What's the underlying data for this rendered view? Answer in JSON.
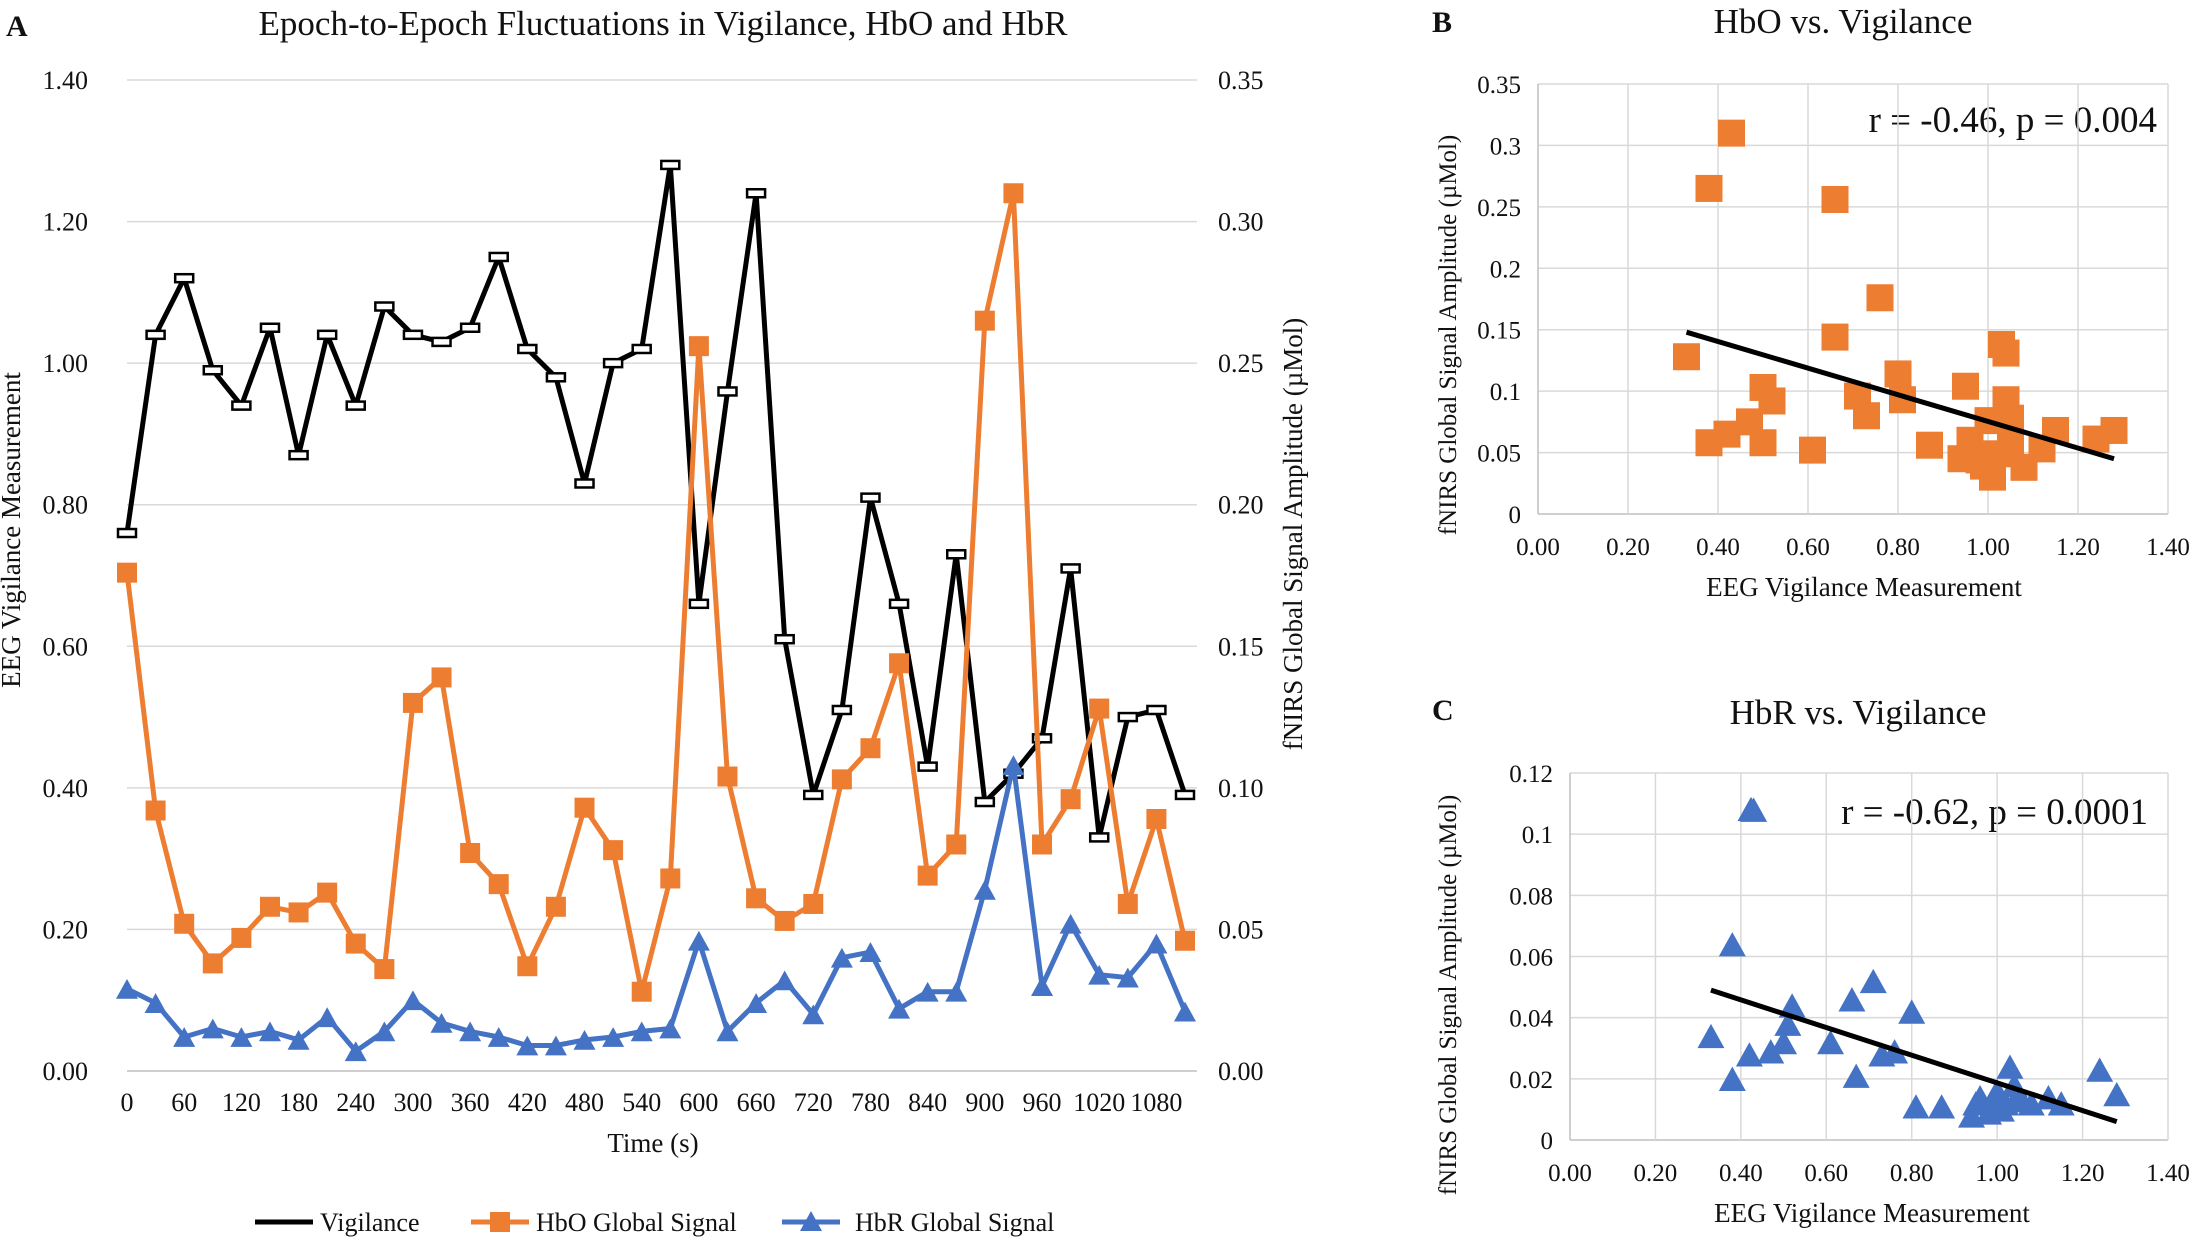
{
  "panel_labels": {
    "a": "A",
    "b": "B",
    "c": "C"
  },
  "chart_data": [
    {
      "id": "A",
      "type": "line",
      "title": "Epoch-to-Epoch Fluctuations in Vigilance, HbO and HbR",
      "xlabel": "Time (s)",
      "ylabel": "EEG Vigilance Measurement",
      "y2label": "fNIRS Global Signal Amplitude (µMol)",
      "ylim": [
        0,
        1.4
      ],
      "y2lim": [
        0,
        0.35
      ],
      "yticks": [
        "0.00",
        "0.20",
        "0.40",
        "0.60",
        "0.80",
        "1.00",
        "1.20",
        "1.40"
      ],
      "y2ticks": [
        "0.00",
        "0.05",
        "0.10",
        "0.15",
        "0.20",
        "0.25",
        "0.30",
        "0.35"
      ],
      "xticks": [
        "0",
        "60",
        "120",
        "180",
        "240",
        "300",
        "360",
        "420",
        "480",
        "540",
        "600",
        "660",
        "720",
        "780",
        "840",
        "900",
        "960",
        "1020",
        "1080"
      ],
      "x": [
        0,
        30,
        60,
        90,
        120,
        150,
        180,
        210,
        240,
        270,
        300,
        330,
        360,
        390,
        420,
        450,
        480,
        510,
        540,
        570,
        600,
        630,
        660,
        690,
        720,
        750,
        780,
        810,
        840,
        870,
        900,
        930,
        960,
        990,
        1020,
        1050,
        1080,
        1110
      ],
      "legend": [
        "Vigilance",
        "HbO Global Signal",
        "HbR Global Signal"
      ],
      "series": [
        {
          "name": "Vigilance",
          "axis": "left",
          "color": "#000000",
          "values": [
            0.76,
            1.04,
            1.12,
            0.99,
            0.94,
            1.05,
            0.87,
            1.04,
            0.94,
            1.08,
            1.04,
            1.03,
            1.05,
            1.15,
            1.02,
            0.98,
            0.83,
            1.0,
            1.02,
            1.28,
            0.66,
            0.96,
            1.24,
            0.61,
            0.39,
            0.51,
            0.81,
            0.66,
            0.43,
            0.73,
            0.38,
            0.42,
            0.47,
            0.71,
            0.33,
            0.5,
            0.51,
            0.39
          ]
        },
        {
          "name": "HbO Global Signal",
          "axis": "right",
          "color": "#ed7d31",
          "values": [
            0.176,
            0.092,
            0.052,
            0.038,
            0.047,
            0.058,
            0.056,
            0.063,
            0.045,
            0.036,
            0.13,
            0.139,
            0.077,
            0.066,
            0.037,
            0.058,
            0.093,
            0.078,
            0.028,
            0.068,
            0.256,
            0.104,
            0.061,
            0.053,
            0.059,
            0.103,
            0.114,
            0.144,
            0.069,
            0.08,
            0.265,
            0.31,
            0.08,
            0.096,
            0.128,
            0.059,
            0.089,
            0.046
          ]
        },
        {
          "name": "HbR Global Signal",
          "axis": "right",
          "color": "#4472c4",
          "values": [
            0.029,
            0.024,
            0.012,
            0.015,
            0.012,
            0.014,
            0.011,
            0.019,
            0.007,
            0.014,
            0.025,
            0.017,
            0.014,
            0.012,
            0.009,
            0.009,
            0.011,
            0.012,
            0.014,
            0.015,
            0.046,
            0.014,
            0.024,
            0.032,
            0.02,
            0.04,
            0.042,
            0.022,
            0.028,
            0.028,
            0.064,
            0.108,
            0.03,
            0.052,
            0.034,
            0.033,
            0.045,
            0.021
          ]
        }
      ]
    },
    {
      "id": "B",
      "type": "scatter",
      "title": "HbO vs. Vigilance",
      "xlabel": "EEG Vigilance Measurement",
      "ylabel": "fNIRS Global Signal Amplitude (µMol)",
      "xlim": [
        0,
        1.4
      ],
      "ylim": [
        0,
        0.35
      ],
      "xticks": [
        "0.00",
        "0.20",
        "0.40",
        "0.60",
        "0.80",
        "1.00",
        "1.20",
        "1.40"
      ],
      "yticks": [
        "0",
        "0.05",
        "0.1",
        "0.15",
        "0.2",
        "0.25",
        "0.3",
        "0.35"
      ],
      "annotation": "r = -0.46, p = 0.004",
      "color": "#ed7d31",
      "points": [
        [
          0.33,
          0.128
        ],
        [
          0.38,
          0.265
        ],
        [
          0.38,
          0.058
        ],
        [
          0.42,
          0.065
        ],
        [
          0.43,
          0.31
        ],
        [
          0.47,
          0.075
        ],
        [
          0.5,
          0.103
        ],
        [
          0.5,
          0.058
        ],
        [
          0.52,
          0.092
        ],
        [
          0.61,
          0.052
        ],
        [
          0.66,
          0.256
        ],
        [
          0.66,
          0.144
        ],
        [
          0.71,
          0.096
        ],
        [
          0.73,
          0.08
        ],
        [
          0.76,
          0.176
        ],
        [
          0.8,
          0.114
        ],
        [
          0.81,
          0.093
        ],
        [
          0.87,
          0.056
        ],
        [
          0.94,
          0.045
        ],
        [
          0.95,
          0.104
        ],
        [
          0.96,
          0.06
        ],
        [
          0.98,
          0.044
        ],
        [
          0.99,
          0.039
        ],
        [
          1.0,
          0.076
        ],
        [
          1.01,
          0.03
        ],
        [
          1.02,
          0.049
        ],
        [
          1.03,
          0.138
        ],
        [
          1.04,
          0.131
        ],
        [
          1.04,
          0.093
        ],
        [
          1.05,
          0.078
        ],
        [
          1.05,
          0.058
        ],
        [
          1.08,
          0.038
        ],
        [
          1.12,
          0.053
        ],
        [
          1.15,
          0.068
        ],
        [
          1.24,
          0.061
        ],
        [
          1.28,
          0.068
        ]
      ],
      "trendline": [
        [
          0.33,
          0.148
        ],
        [
          1.28,
          0.045
        ]
      ]
    },
    {
      "id": "C",
      "type": "scatter",
      "title": "HbR vs. Vigilance",
      "xlabel": "EEG Vigilance Measurement",
      "ylabel": "fNIRS Global Signal Amplitude (µMol)",
      "xlim": [
        0,
        1.4
      ],
      "ylim": [
        0,
        0.12
      ],
      "xticks": [
        "0.00",
        "0.20",
        "0.40",
        "0.60",
        "0.80",
        "1.00",
        "1.20",
        "1.40"
      ],
      "yticks": [
        "0",
        "0.02",
        "0.04",
        "0.06",
        "0.08",
        "0.1",
        "0.12"
      ],
      "annotation": "r = -0.62, p = 0.0001",
      "color": "#4472c4",
      "points": [
        [
          0.33,
          0.034
        ],
        [
          0.38,
          0.064
        ],
        [
          0.38,
          0.02
        ],
        [
          0.42,
          0.028
        ],
        [
          0.43,
          0.108
        ],
        [
          0.47,
          0.029
        ],
        [
          0.5,
          0.032
        ],
        [
          0.51,
          0.038
        ],
        [
          0.52,
          0.044
        ],
        [
          0.61,
          0.032
        ],
        [
          0.66,
          0.046
        ],
        [
          0.67,
          0.021
        ],
        [
          0.71,
          0.052
        ],
        [
          0.73,
          0.028
        ],
        [
          0.76,
          0.029
        ],
        [
          0.8,
          0.042
        ],
        [
          0.81,
          0.011
        ],
        [
          0.87,
          0.011
        ],
        [
          0.94,
          0.008
        ],
        [
          0.95,
          0.012
        ],
        [
          0.96,
          0.014
        ],
        [
          0.98,
          0.009
        ],
        [
          0.99,
          0.012
        ],
        [
          1.0,
          0.016
        ],
        [
          1.01,
          0.01
        ],
        [
          1.02,
          0.012
        ],
        [
          1.03,
          0.024
        ],
        [
          1.04,
          0.018
        ],
        [
          1.05,
          0.013
        ],
        [
          1.05,
          0.015
        ],
        [
          1.08,
          0.012
        ],
        [
          1.12,
          0.014
        ],
        [
          1.15,
          0.012
        ],
        [
          1.24,
          0.023
        ],
        [
          1.28,
          0.015
        ]
      ],
      "trendline": [
        [
          0.33,
          0.049
        ],
        [
          1.28,
          0.006
        ]
      ]
    }
  ]
}
